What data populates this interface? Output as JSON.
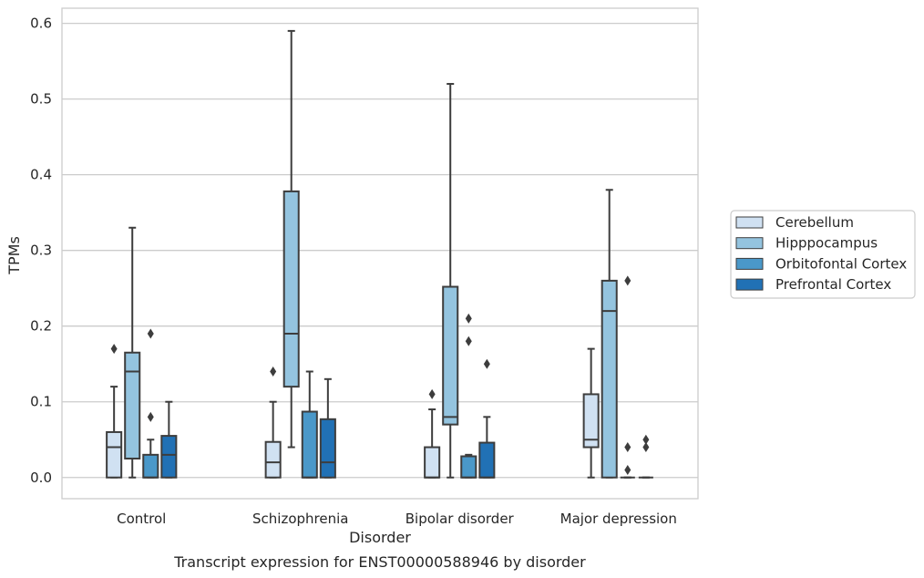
{
  "chart_data": {
    "type": "box",
    "title": "",
    "caption": "Transcript expression for ENST00000588946 by disorder",
    "xlabel": "Disorder",
    "ylabel": "TPMs",
    "ylim": [
      -0.028,
      0.62
    ],
    "yticks": [
      0.0,
      0.1,
      0.2,
      0.3,
      0.4,
      0.5,
      0.6
    ],
    "ytick_labels": [
      "0.0",
      "0.1",
      "0.2",
      "0.3",
      "0.4",
      "0.5",
      "0.6"
    ],
    "grid": "horizontal",
    "legend_position": "right",
    "categories": [
      "Control",
      "Schizophrenia",
      "Bipolar disorder",
      "Major depression"
    ],
    "series": [
      {
        "name": "Cerebellum",
        "color": "#d0e1f2",
        "boxes": [
          {
            "whisker_low": 0.0,
            "q1": 0.0,
            "median": 0.04,
            "q3": 0.06,
            "whisker_high": 0.12,
            "outliers": [
              0.17
            ]
          },
          {
            "whisker_low": 0.0,
            "q1": 0.0,
            "median": 0.02,
            "q3": 0.047,
            "whisker_high": 0.1,
            "outliers": [
              0.14
            ]
          },
          {
            "whisker_low": 0.0,
            "q1": 0.0,
            "median": 0.0,
            "q3": 0.04,
            "whisker_high": 0.09,
            "outliers": [
              0.11
            ]
          },
          {
            "whisker_low": 0.0,
            "q1": 0.04,
            "median": 0.05,
            "q3": 0.11,
            "whisker_high": 0.17,
            "outliers": []
          }
        ]
      },
      {
        "name": "Hipppocampus",
        "color": "#94c4df",
        "boxes": [
          {
            "whisker_low": 0.0,
            "q1": 0.025,
            "median": 0.14,
            "q3": 0.165,
            "whisker_high": 0.33,
            "outliers": []
          },
          {
            "whisker_low": 0.04,
            "q1": 0.12,
            "median": 0.19,
            "q3": 0.378,
            "whisker_high": 0.59,
            "outliers": []
          },
          {
            "whisker_low": 0.0,
            "q1": 0.07,
            "median": 0.08,
            "q3": 0.252,
            "whisker_high": 0.52,
            "outliers": []
          },
          {
            "whisker_low": 0.0,
            "q1": 0.0,
            "median": 0.22,
            "q3": 0.26,
            "whisker_high": 0.38,
            "outliers": []
          }
        ]
      },
      {
        "name": "Orbitofontal Cortex",
        "color": "#4a98c9",
        "boxes": [
          {
            "whisker_low": 0.0,
            "q1": 0.0,
            "median": 0.0,
            "q3": 0.03,
            "whisker_high": 0.05,
            "outliers": [
              0.08,
              0.19
            ]
          },
          {
            "whisker_low": 0.0,
            "q1": 0.0,
            "median": 0.0,
            "q3": 0.087,
            "whisker_high": 0.14,
            "outliers": []
          },
          {
            "whisker_low": 0.0,
            "q1": 0.0,
            "median": 0.0,
            "q3": 0.028,
            "whisker_high": 0.03,
            "outliers": [
              0.18,
              0.21
            ]
          },
          {
            "whisker_low": 0.0,
            "q1": 0.0,
            "median": 0.0,
            "q3": 0.0,
            "whisker_high": 0.0,
            "outliers": [
              0.01,
              0.04,
              0.26
            ]
          }
        ]
      },
      {
        "name": "Prefrontal Cortex",
        "color": "#2171b5",
        "boxes": [
          {
            "whisker_low": 0.0,
            "q1": 0.0,
            "median": 0.03,
            "q3": 0.055,
            "whisker_high": 0.1,
            "outliers": []
          },
          {
            "whisker_low": 0.0,
            "q1": 0.0,
            "median": 0.02,
            "q3": 0.077,
            "whisker_high": 0.13,
            "outliers": []
          },
          {
            "whisker_low": 0.0,
            "q1": 0.0,
            "median": 0.0,
            "q3": 0.046,
            "whisker_high": 0.08,
            "outliers": [
              0.15
            ]
          },
          {
            "whisker_low": 0.0,
            "q1": 0.0,
            "median": 0.0,
            "q3": 0.0,
            "whisker_high": 0.0,
            "outliers": [
              0.04,
              0.05
            ]
          }
        ]
      }
    ]
  }
}
